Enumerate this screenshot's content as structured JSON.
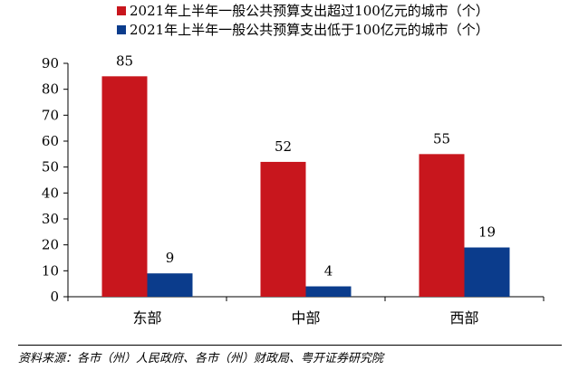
{
  "chart_data": {
    "type": "bar",
    "categories": [
      "东部",
      "中部",
      "西部"
    ],
    "series": [
      {
        "name": "2021年上半年一般公共预算支出超过100亿元的城市（个）",
        "values": [
          85,
          52,
          55
        ],
        "color": "#C8161D"
      },
      {
        "name": "2021年上半年一般公共预算支出低于100亿元的城市（个）",
        "values": [
          9,
          4,
          19
        ],
        "color": "#0B3C8C"
      }
    ],
    "ylim": [
      0,
      90
    ],
    "yticks": [
      0,
      10,
      20,
      30,
      40,
      50,
      60,
      70,
      80,
      90
    ],
    "grid": false,
    "legend_position": "top-right",
    "title": "",
    "xlabel": "",
    "ylabel": ""
  },
  "source_text": "资料来源：各市（州）人民政府、各市（州）财政局、粤开证券研究院"
}
